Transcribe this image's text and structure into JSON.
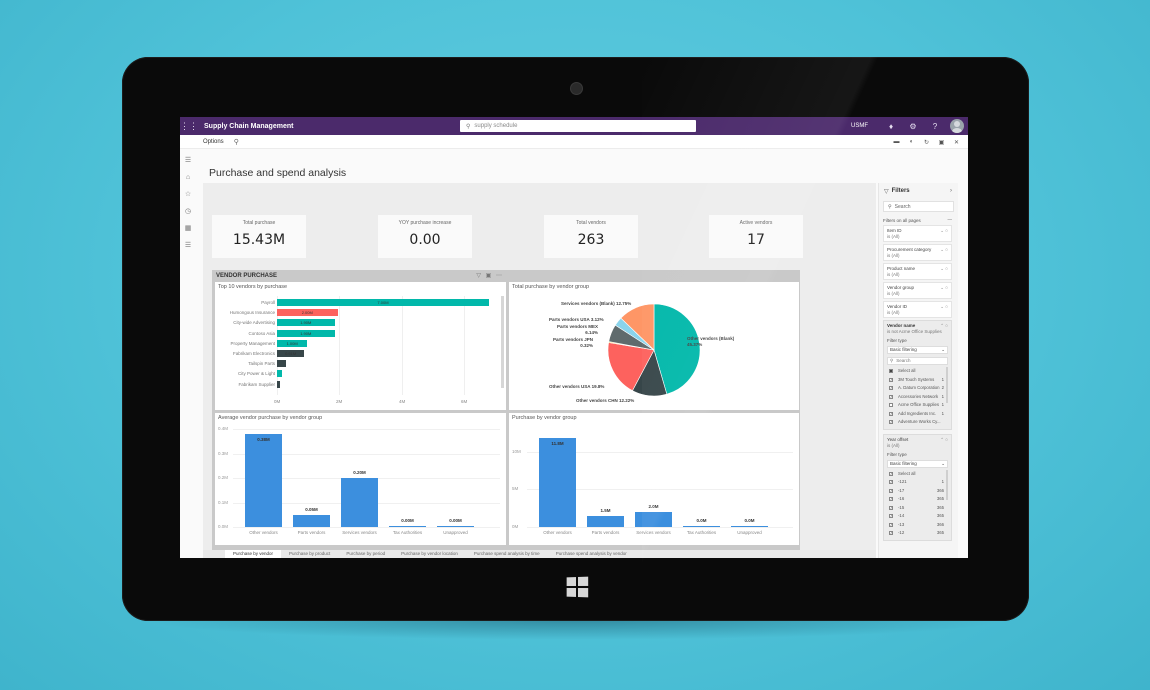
{
  "app": {
    "title": "Supply Chain Management",
    "search_placeholder": "supply schedule",
    "company": "USMF",
    "icons": [
      "bell-icon",
      "gear-icon",
      "help-icon",
      "avatar"
    ]
  },
  "actionbar": {
    "options_label": "Options",
    "right_icons": [
      "link-icon",
      "office-icon",
      "refresh-icon",
      "popout-icon",
      "close-icon"
    ]
  },
  "leftnav": {
    "items": [
      "hamburger-icon",
      "home-icon",
      "favorites-star-icon",
      "recent-clock-icon",
      "workspaces-icon",
      "modules-list-icon"
    ]
  },
  "page": {
    "title": "Purchase and spend analysis"
  },
  "kpis": [
    {
      "label": "Total purchase",
      "value": "15.43M"
    },
    {
      "label": "YOY purchase increase",
      "value": "0.00"
    },
    {
      "label": "Total vendors",
      "value": "263"
    },
    {
      "label": "Active vendors",
      "value": "17"
    }
  ],
  "vendor_purchase": {
    "title": "VENDOR PURCHASE",
    "icons": [
      "filter-icon",
      "focus-mode-icon",
      "more-options-icon"
    ]
  },
  "chart_data": [
    {
      "type": "bar",
      "orientation": "horizontal",
      "title": "Top 10 vendors by purchase",
      "categories": [
        "Payroll",
        "Humongous Insurance",
        "City-wide Advertising",
        "Contoso Asia",
        "Property Management",
        "Fabrikam Electronics",
        "Tailspin Parts",
        "City Power & Light",
        "Fabrikam Supplier"
      ],
      "values": [
        7.0,
        2.0,
        1.9,
        1.9,
        1.0,
        0.9,
        0.3,
        0.15,
        0.1
      ],
      "value_labels": [
        "7.00M",
        "2.00M",
        "1.90M",
        "1.90M",
        "1.00M",
        "0.91M",
        "",
        "",
        ""
      ],
      "colors": [
        "#01B8AA",
        "#FD625E",
        "#01B8AA",
        "#01B8AA",
        "#01B8AA",
        "#374649",
        "#374649",
        "#01B8AA",
        "#374649"
      ],
      "x_ticks": [
        "0M",
        "2M",
        "4M",
        "6M"
      ],
      "xlim": [
        0,
        7.2
      ],
      "unit": "M"
    },
    {
      "type": "pie",
      "title": "Total purchase by vendor group",
      "slices": [
        {
          "label": "Other vendors (Blank)",
          "pct_label": "45.37%",
          "value": 45.37,
          "color": "#01B8AA"
        },
        {
          "label": "Other vendors CHN",
          "pct_label": "12.22%",
          "value": 12.22,
          "color": "#374649"
        },
        {
          "label": "Other vendors USA",
          "pct_label": "19.8%",
          "value": 19.8,
          "color": "#FD625E"
        },
        {
          "label": "Parts vendors JPN",
          "pct_label": "0.32%",
          "value": 0.32,
          "color": "#F2C80F"
        },
        {
          "label": "Parts vendors MEX",
          "pct_label": "6.14%",
          "value": 6.14,
          "color": "#5F6B6D"
        },
        {
          "label": "Parts vendors USA",
          "pct_label": "3.12%",
          "value": 3.12,
          "color": "#8AD4EB"
        },
        {
          "label": "Services vendors (Blank)",
          "pct_label": "12.75%",
          "value": 12.75,
          "color": "#FE9666"
        }
      ]
    },
    {
      "type": "bar",
      "title": "Average vendor purchase by vendor group",
      "categories": [
        "Other vendors",
        "Parts vendors",
        "Services vendors",
        "Tax Authorities",
        "Unapproved"
      ],
      "values": [
        0.38,
        0.05,
        0.2,
        0.0,
        0.0
      ],
      "value_labels": [
        "0.38M",
        "0.05M",
        "0.20M",
        "0.00M",
        "0.00M"
      ],
      "y_ticks": [
        "0.0M",
        "0.1M",
        "0.2M",
        "0.3M",
        "0.4M"
      ],
      "ylim": [
        0,
        0.4
      ],
      "color": "#3C8FDE"
    },
    {
      "type": "bar",
      "title": "Purchase by vendor group",
      "categories": [
        "Other vendors",
        "Parts vendors",
        "Services vendors",
        "Tax Authorities",
        "Unapproved"
      ],
      "values": [
        11.8,
        1.5,
        2.0,
        0.0,
        0.0
      ],
      "value_labels": [
        "11.8M",
        "1.5M",
        "2.0M",
        "0.0M",
        "0.0M"
      ],
      "y_ticks": [
        "0M",
        "5M",
        "10M"
      ],
      "ylim": [
        0,
        13
      ],
      "color": "#3C8FDE"
    }
  ],
  "filters": {
    "title": "Filters",
    "search_placeholder": "Search",
    "section_label": "Filters on all pages",
    "cards": [
      {
        "name": "Item ID",
        "state": "is (All)"
      },
      {
        "name": "Procurement category",
        "state": "is (All)"
      },
      {
        "name": "Product name",
        "state": "is (All)"
      },
      {
        "name": "Vendor group",
        "state": "is (All)"
      },
      {
        "name": "Vendor ID",
        "state": "is (All)"
      }
    ],
    "vendor_name": {
      "name": "Vendor name",
      "state": "is not Acme Office Supplies",
      "filter_type_label": "Filter type",
      "filter_type_value": "Basic filtering",
      "search_placeholder": "Search",
      "items": [
        {
          "label": "Select all",
          "count": "",
          "state": "partial"
        },
        {
          "label": "3M Touch Systems",
          "count": "1",
          "state": "checked"
        },
        {
          "label": "A. Datum Corporation",
          "count": "2",
          "state": "checked"
        },
        {
          "label": "Accessories Network",
          "count": "1",
          "state": "checked"
        },
        {
          "label": "Acme Office Supplies",
          "count": "1",
          "state": "unchecked"
        },
        {
          "label": "Add Ingredients Inc.",
          "count": "1",
          "state": "checked"
        },
        {
          "label": "Adventure Works Cy...",
          "count": "",
          "state": "checked"
        }
      ]
    },
    "year_offset": {
      "name": "Year offset",
      "state": "is (All)",
      "filter_type_label": "Filter type",
      "filter_type_value": "Basic filtering",
      "items": [
        {
          "label": "Select all",
          "count": ""
        },
        {
          "label": "-121",
          "count": "1"
        },
        {
          "label": "-17",
          "count": "366"
        },
        {
          "label": "-16",
          "count": "365"
        },
        {
          "label": "-15",
          "count": "365"
        },
        {
          "label": "-14",
          "count": "365"
        },
        {
          "label": "-13",
          "count": "366"
        },
        {
          "label": "-12",
          "count": "365"
        }
      ]
    }
  },
  "tabs": [
    {
      "label": "Purchase by vendor",
      "active": true
    },
    {
      "label": "Purchase by product",
      "active": false
    },
    {
      "label": "Purchase by period",
      "active": false
    },
    {
      "label": "Purchase by vendor location",
      "active": false
    },
    {
      "label": "Purchase spend analysis by time",
      "active": false
    },
    {
      "label": "Purchase spend analysis by vendor",
      "active": false
    }
  ]
}
